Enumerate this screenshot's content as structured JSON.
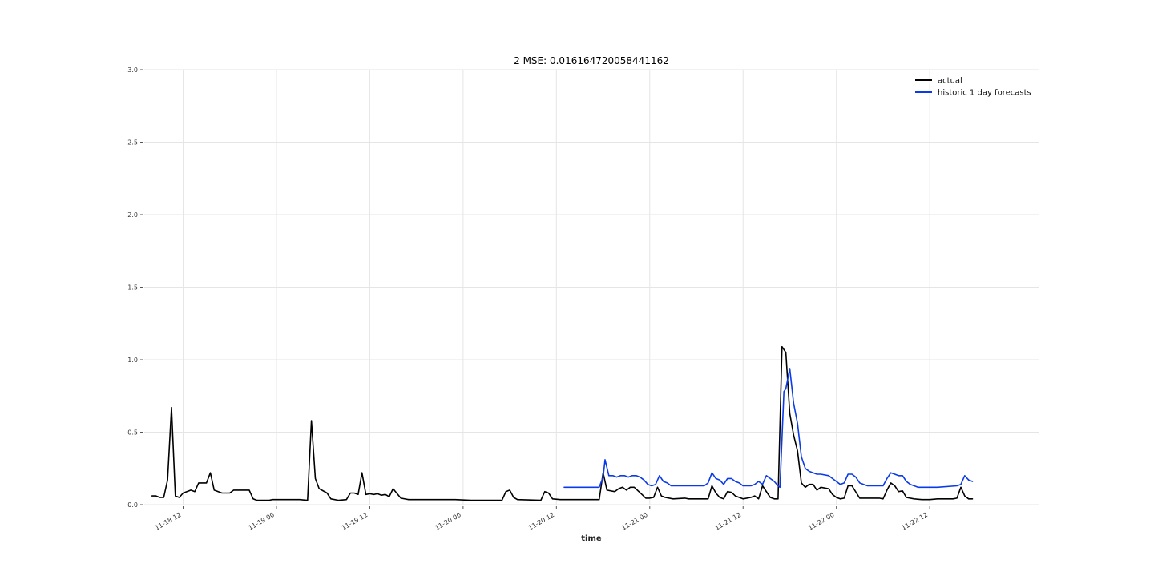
{
  "chart_data": {
    "type": "line",
    "title": "2 MSE: 0.016164720058441162",
    "xlabel": "time",
    "ylabel": "",
    "xlim": [
      "2023-11-18 07:00",
      "2023-11-23 02:00"
    ],
    "ylim": [
      0,
      3.0
    ],
    "y_ticks": [
      "0.0",
      "0.5",
      "1.0",
      "1.5",
      "2.0",
      "2.5",
      "3.0"
    ],
    "x_ticks": [
      "11-18 12",
      "11-19 00",
      "11-19 12",
      "11-20 00",
      "11-20 12",
      "11-21 00",
      "11-21 12",
      "11-22 00",
      "11-22 12"
    ],
    "grid": true,
    "legend_position": "top-right",
    "series": [
      {
        "name": "actual",
        "color": "#000000",
        "points": [
          [
            "2023-11-18 08:00",
            0.06
          ],
          [
            "2023-11-18 08:30",
            0.06
          ],
          [
            "2023-11-18 09:00",
            0.05
          ],
          [
            "2023-11-18 09:30",
            0.05
          ],
          [
            "2023-11-18 10:00",
            0.17
          ],
          [
            "2023-11-18 10:30",
            0.67
          ],
          [
            "2023-11-18 11:00",
            0.06
          ],
          [
            "2023-11-18 11:30",
            0.05
          ],
          [
            "2023-11-18 12:00",
            0.08
          ],
          [
            "2023-11-18 13:00",
            0.1
          ],
          [
            "2023-11-18 13:30",
            0.09
          ],
          [
            "2023-11-18 14:00",
            0.15
          ],
          [
            "2023-11-18 14:30",
            0.15
          ],
          [
            "2023-11-18 15:00",
            0.15
          ],
          [
            "2023-11-18 15:30",
            0.22
          ],
          [
            "2023-11-18 16:00",
            0.1
          ],
          [
            "2023-11-18 17:00",
            0.08
          ],
          [
            "2023-11-18 18:00",
            0.08
          ],
          [
            "2023-11-18 18:30",
            0.1
          ],
          [
            "2023-11-18 19:30",
            0.1
          ],
          [
            "2023-11-18 20:30",
            0.1
          ],
          [
            "2023-11-18 21:00",
            0.04
          ],
          [
            "2023-11-18 21:30",
            0.03
          ],
          [
            "2023-11-18 23:00",
            0.03
          ],
          [
            "2023-11-18 23:30",
            0.035
          ],
          [
            "2023-11-19 01:00",
            0.035
          ],
          [
            "2023-11-19 03:00",
            0.035
          ],
          [
            "2023-11-19 04:00",
            0.03
          ],
          [
            "2023-11-19 04:30",
            0.58
          ],
          [
            "2023-11-19 05:00",
            0.18
          ],
          [
            "2023-11-19 05:30",
            0.11
          ],
          [
            "2023-11-19 06:30",
            0.08
          ],
          [
            "2023-11-19 07:00",
            0.04
          ],
          [
            "2023-11-19 08:00",
            0.03
          ],
          [
            "2023-11-19 09:00",
            0.035
          ],
          [
            "2023-11-19 09:30",
            0.08
          ],
          [
            "2023-11-19 10:00",
            0.08
          ],
          [
            "2023-11-19 10:30",
            0.07
          ],
          [
            "2023-11-19 11:00",
            0.22
          ],
          [
            "2023-11-19 11:30",
            0.07
          ],
          [
            "2023-11-19 12:00",
            0.075
          ],
          [
            "2023-11-19 12:30",
            0.07
          ],
          [
            "2023-11-19 13:00",
            0.075
          ],
          [
            "2023-11-19 13:30",
            0.065
          ],
          [
            "2023-11-19 14:00",
            0.07
          ],
          [
            "2023-11-19 14:30",
            0.055
          ],
          [
            "2023-11-19 15:00",
            0.11
          ],
          [
            "2023-11-19 16:00",
            0.045
          ],
          [
            "2023-11-19 17:00",
            0.035
          ],
          [
            "2023-11-19 19:00",
            0.035
          ],
          [
            "2023-11-19 23:00",
            0.035
          ],
          [
            "2023-11-20 01:00",
            0.03
          ],
          [
            "2023-11-20 05:00",
            0.03
          ],
          [
            "2023-11-20 05:30",
            0.09
          ],
          [
            "2023-11-20 06:00",
            0.1
          ],
          [
            "2023-11-20 06:30",
            0.05
          ],
          [
            "2023-11-20 07:00",
            0.035
          ],
          [
            "2023-11-20 10:00",
            0.03
          ],
          [
            "2023-11-20 10:30",
            0.09
          ],
          [
            "2023-11-20 11:00",
            0.08
          ],
          [
            "2023-11-20 11:30",
            0.04
          ],
          [
            "2023-11-20 12:30",
            0.035
          ],
          [
            "2023-11-20 17:30",
            0.035
          ],
          [
            "2023-11-20 18:00",
            0.22
          ],
          [
            "2023-11-20 18:30",
            0.1
          ],
          [
            "2023-11-20 19:30",
            0.09
          ],
          [
            "2023-11-20 20:00",
            0.11
          ],
          [
            "2023-11-20 20:30",
            0.12
          ],
          [
            "2023-11-20 21:00",
            0.1
          ],
          [
            "2023-11-20 21:30",
            0.12
          ],
          [
            "2023-11-20 22:00",
            0.12
          ],
          [
            "2023-11-20 23:00",
            0.07
          ],
          [
            "2023-11-20 23:30",
            0.045
          ],
          [
            "2023-11-21 00:00",
            0.045
          ],
          [
            "2023-11-21 00:30",
            0.05
          ],
          [
            "2023-11-21 01:00",
            0.12
          ],
          [
            "2023-11-21 01:30",
            0.06
          ],
          [
            "2023-11-21 02:00",
            0.05
          ],
          [
            "2023-11-21 03:00",
            0.04
          ],
          [
            "2023-11-21 04:30",
            0.045
          ],
          [
            "2023-11-21 05:00",
            0.04
          ],
          [
            "2023-11-21 07:30",
            0.04
          ],
          [
            "2023-11-21 08:00",
            0.13
          ],
          [
            "2023-11-21 08:30",
            0.08
          ],
          [
            "2023-11-21 09:00",
            0.05
          ],
          [
            "2023-11-21 09:30",
            0.04
          ],
          [
            "2023-11-21 10:00",
            0.09
          ],
          [
            "2023-11-21 10:30",
            0.085
          ],
          [
            "2023-11-21 11:00",
            0.06
          ],
          [
            "2023-11-21 12:00",
            0.04
          ],
          [
            "2023-11-21 13:00",
            0.05
          ],
          [
            "2023-11-21 13:30",
            0.06
          ],
          [
            "2023-11-21 14:00",
            0.04
          ],
          [
            "2023-11-21 14:30",
            0.13
          ],
          [
            "2023-11-21 15:30",
            0.05
          ],
          [
            "2023-11-21 16:00",
            0.04
          ],
          [
            "2023-11-21 16:30",
            0.04
          ],
          [
            "2023-11-21 17:00",
            1.09
          ],
          [
            "2023-11-21 17:30",
            1.05
          ],
          [
            "2023-11-21 18:00",
            0.63
          ],
          [
            "2023-11-21 18:30",
            0.48
          ],
          [
            "2023-11-21 19:00",
            0.37
          ],
          [
            "2023-11-21 19:30",
            0.15
          ],
          [
            "2023-11-21 20:00",
            0.12
          ],
          [
            "2023-11-21 20:30",
            0.14
          ],
          [
            "2023-11-21 21:00",
            0.14
          ],
          [
            "2023-11-21 21:30",
            0.1
          ],
          [
            "2023-11-21 22:00",
            0.12
          ],
          [
            "2023-11-21 23:00",
            0.11
          ],
          [
            "2023-11-21 23:30",
            0.07
          ],
          [
            "2023-11-22 00:00",
            0.05
          ],
          [
            "2023-11-22 00:30",
            0.04
          ],
          [
            "2023-11-22 01:00",
            0.045
          ],
          [
            "2023-11-22 01:30",
            0.13
          ],
          [
            "2023-11-22 02:00",
            0.13
          ],
          [
            "2023-11-22 03:00",
            0.045
          ],
          [
            "2023-11-22 04:00",
            0.045
          ],
          [
            "2023-11-22 05:30",
            0.045
          ],
          [
            "2023-11-22 06:00",
            0.04
          ],
          [
            "2023-11-22 06:30",
            0.1
          ],
          [
            "2023-11-22 07:00",
            0.15
          ],
          [
            "2023-11-22 07:30",
            0.13
          ],
          [
            "2023-11-22 08:00",
            0.09
          ],
          [
            "2023-11-22 08:30",
            0.095
          ],
          [
            "2023-11-22 09:00",
            0.05
          ],
          [
            "2023-11-22 10:00",
            0.04
          ],
          [
            "2023-11-22 11:00",
            0.035
          ],
          [
            "2023-11-22 12:00",
            0.035
          ],
          [
            "2023-11-22 13:00",
            0.04
          ],
          [
            "2023-11-22 15:00",
            0.04
          ],
          [
            "2023-11-22 15:30",
            0.045
          ],
          [
            "2023-11-22 16:00",
            0.12
          ],
          [
            "2023-11-22 16:30",
            0.06
          ],
          [
            "2023-11-22 17:00",
            0.04
          ],
          [
            "2023-11-22 17:30",
            0.04
          ]
        ]
      },
      {
        "name": "historic 1 day forecasts",
        "color": "#0b3be8",
        "points": [
          [
            "2023-11-20 13:00",
            0.12
          ],
          [
            "2023-11-20 14:00",
            0.12
          ],
          [
            "2023-11-20 17:30",
            0.12
          ],
          [
            "2023-11-20 18:00",
            0.19
          ],
          [
            "2023-11-20 18:15",
            0.31
          ],
          [
            "2023-11-20 18:45",
            0.2
          ],
          [
            "2023-11-20 19:15",
            0.2
          ],
          [
            "2023-11-20 19:45",
            0.19
          ],
          [
            "2023-11-20 20:15",
            0.2
          ],
          [
            "2023-11-20 20:45",
            0.2
          ],
          [
            "2023-11-20 21:15",
            0.19
          ],
          [
            "2023-11-20 21:45",
            0.2
          ],
          [
            "2023-11-20 22:15",
            0.2
          ],
          [
            "2023-11-20 22:45",
            0.19
          ],
          [
            "2023-11-20 23:15",
            0.17
          ],
          [
            "2023-11-20 23:45",
            0.14
          ],
          [
            "2023-11-21 00:15",
            0.13
          ],
          [
            "2023-11-21 00:45",
            0.14
          ],
          [
            "2023-11-21 01:15",
            0.2
          ],
          [
            "2023-11-21 01:45",
            0.16
          ],
          [
            "2023-11-21 02:15",
            0.15
          ],
          [
            "2023-11-21 02:45",
            0.13
          ],
          [
            "2023-11-21 03:30",
            0.13
          ],
          [
            "2023-11-21 04:00",
            0.13
          ],
          [
            "2023-11-21 06:30",
            0.13
          ],
          [
            "2023-11-21 07:00",
            0.13
          ],
          [
            "2023-11-21 07:30",
            0.15
          ],
          [
            "2023-11-21 08:00",
            0.22
          ],
          [
            "2023-11-21 08:30",
            0.18
          ],
          [
            "2023-11-21 09:00",
            0.17
          ],
          [
            "2023-11-21 09:30",
            0.14
          ],
          [
            "2023-11-21 10:00",
            0.18
          ],
          [
            "2023-11-21 10:30",
            0.18
          ],
          [
            "2023-11-21 11:00",
            0.16
          ],
          [
            "2023-11-21 11:30",
            0.15
          ],
          [
            "2023-11-21 12:00",
            0.13
          ],
          [
            "2023-11-21 12:30",
            0.13
          ],
          [
            "2023-11-21 13:00",
            0.13
          ],
          [
            "2023-11-21 13:30",
            0.14
          ],
          [
            "2023-11-21 14:00",
            0.16
          ],
          [
            "2023-11-21 14:30",
            0.14
          ],
          [
            "2023-11-21 15:00",
            0.2
          ],
          [
            "2023-11-21 15:30",
            0.18
          ],
          [
            "2023-11-21 16:00",
            0.16
          ],
          [
            "2023-11-21 16:30",
            0.13
          ],
          [
            "2023-11-21 16:45",
            0.12
          ],
          [
            "2023-11-21 17:15",
            0.78
          ],
          [
            "2023-11-21 17:30",
            0.8
          ],
          [
            "2023-11-21 18:00",
            0.94
          ],
          [
            "2023-11-21 18:30",
            0.7
          ],
          [
            "2023-11-21 19:00",
            0.56
          ],
          [
            "2023-11-21 19:30",
            0.33
          ],
          [
            "2023-11-21 20:00",
            0.25
          ],
          [
            "2023-11-21 20:30",
            0.23
          ],
          [
            "2023-11-21 21:00",
            0.22
          ],
          [
            "2023-11-21 21:30",
            0.21
          ],
          [
            "2023-11-21 22:00",
            0.21
          ],
          [
            "2023-11-21 23:00",
            0.2
          ],
          [
            "2023-11-21 23:30",
            0.18
          ],
          [
            "2023-11-22 00:30",
            0.14
          ],
          [
            "2023-11-22 01:00",
            0.15
          ],
          [
            "2023-11-22 01:30",
            0.21
          ],
          [
            "2023-11-22 02:00",
            0.21
          ],
          [
            "2023-11-22 02:30",
            0.19
          ],
          [
            "2023-11-22 03:00",
            0.15
          ],
          [
            "2023-11-22 03:30",
            0.14
          ],
          [
            "2023-11-22 04:00",
            0.13
          ],
          [
            "2023-11-22 06:00",
            0.13
          ],
          [
            "2023-11-22 06:30",
            0.18
          ],
          [
            "2023-11-22 07:00",
            0.22
          ],
          [
            "2023-11-22 07:30",
            0.21
          ],
          [
            "2023-11-22 08:00",
            0.2
          ],
          [
            "2023-11-22 08:30",
            0.2
          ],
          [
            "2023-11-22 09:00",
            0.16
          ],
          [
            "2023-11-22 09:30",
            0.14
          ],
          [
            "2023-11-22 10:30",
            0.12
          ],
          [
            "2023-11-22 11:30",
            0.12
          ],
          [
            "2023-11-22 12:00",
            0.12
          ],
          [
            "2023-11-22 13:00",
            0.12
          ],
          [
            "2023-11-22 15:30",
            0.13
          ],
          [
            "2023-11-22 16:00",
            0.14
          ],
          [
            "2023-11-22 16:30",
            0.2
          ],
          [
            "2023-11-22 17:00",
            0.17
          ],
          [
            "2023-11-22 17:30",
            0.16
          ]
        ]
      }
    ]
  }
}
